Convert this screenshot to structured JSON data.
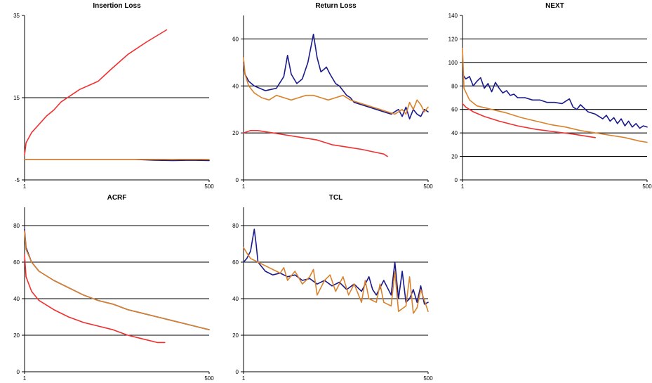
{
  "colors": {
    "blue": "#1a1a8c",
    "orange": "#d9822b",
    "red": "#f03030",
    "grid": "#000000"
  },
  "chart_data": [
    {
      "type": "line",
      "title": "Insertion Loss",
      "xlim": [
        1,
        500
      ],
      "xticks": [
        "1",
        "500"
      ],
      "ylim": [
        -5,
        35
      ],
      "yticks": [
        -5,
        15,
        35
      ],
      "ygrid": [
        15
      ],
      "series": [
        {
          "color": "blue",
          "x": [
            1,
            50,
            100,
            150,
            200,
            250,
            300,
            350,
            400,
            450,
            500
          ],
          "y": [
            0,
            0,
            0,
            0,
            0,
            0,
            0,
            -0.2,
            -0.3,
            -0.2,
            -0.3
          ]
        },
        {
          "color": "orange",
          "x": [
            1,
            100,
            200,
            300,
            400,
            500
          ],
          "y": [
            0,
            0,
            0,
            0,
            0,
            0
          ]
        },
        {
          "color": "red",
          "x": [
            1,
            5,
            20,
            40,
            60,
            80,
            100,
            150,
            200,
            236,
            280,
            330,
            385
          ],
          "y": [
            1,
            4,
            6.5,
            8.5,
            10.5,
            12,
            14,
            17,
            19,
            22,
            25.5,
            28.5,
            31.5
          ]
        }
      ]
    },
    {
      "type": "line",
      "title": "Return Loss",
      "xlim": [
        1,
        500
      ],
      "xticks": [
        "1",
        "500"
      ],
      "ylim": [
        0,
        70
      ],
      "yticks": [
        0,
        20,
        40,
        60
      ],
      "ygrid": [
        20,
        40,
        60
      ],
      "series": [
        {
          "color": "blue",
          "x": [
            1,
            5,
            15,
            30,
            60,
            90,
            110,
            120,
            130,
            145,
            160,
            175,
            190,
            200,
            210,
            218,
            225,
            235,
            250,
            260,
            270,
            280,
            290,
            300,
            320,
            340,
            360,
            380,
            400,
            420,
            430,
            440,
            450,
            460,
            470,
            480,
            490,
            500
          ],
          "y": [
            50,
            45,
            42,
            40,
            38,
            39,
            44,
            53,
            45,
            41,
            43,
            50,
            62,
            52,
            46,
            47,
            48,
            45,
            41,
            40,
            38,
            36,
            35,
            33,
            32,
            31,
            30,
            29,
            28,
            30,
            27,
            31,
            26,
            30,
            28,
            27,
            30,
            29
          ]
        },
        {
          "color": "orange",
          "x": [
            1,
            5,
            15,
            30,
            50,
            70,
            90,
            110,
            130,
            150,
            170,
            190,
            210,
            230,
            250,
            270,
            290,
            310,
            330,
            350,
            370,
            390,
            410,
            430,
            440,
            450,
            460,
            470,
            480,
            490,
            500
          ],
          "y": [
            52,
            45,
            40,
            37,
            35,
            34,
            36,
            35,
            34,
            35,
            36,
            36,
            35,
            34,
            35,
            36,
            34,
            33,
            32,
            31,
            30,
            29,
            28,
            30,
            28,
            33,
            30,
            34,
            32,
            29,
            31
          ]
        },
        {
          "color": "red",
          "x": [
            1,
            20,
            40,
            80,
            120,
            160,
            200,
            240,
            280,
            320,
            350,
            380,
            390
          ],
          "y": [
            20,
            21,
            21,
            20,
            19,
            18,
            17,
            15,
            14,
            13,
            12,
            11,
            10
          ]
        }
      ]
    },
    {
      "type": "line",
      "title": "NEXT",
      "xlim": [
        1,
        500
      ],
      "xticks": [
        "1",
        "500"
      ],
      "ylim": [
        0,
        140
      ],
      "yticks": [
        0,
        20,
        40,
        60,
        80,
        100,
        120,
        140
      ],
      "ygrid": [
        20,
        40,
        60,
        80,
        100,
        120
      ],
      "series": [
        {
          "color": "blue",
          "x": [
            1,
            10,
            20,
            30,
            40,
            50,
            60,
            70,
            80,
            90,
            100,
            110,
            120,
            130,
            140,
            150,
            170,
            190,
            210,
            230,
            250,
            270,
            290,
            300,
            310,
            320,
            340,
            360,
            380,
            390,
            400,
            410,
            420,
            430,
            440,
            450,
            460,
            470,
            480,
            490,
            500
          ],
          "y": [
            90,
            86,
            88,
            80,
            84,
            87,
            78,
            82,
            75,
            83,
            78,
            74,
            76,
            72,
            73,
            70,
            70,
            68,
            68,
            66,
            66,
            65,
            69,
            62,
            60,
            64,
            58,
            56,
            52,
            55,
            50,
            53,
            48,
            52,
            46,
            50,
            45,
            48,
            44,
            46,
            45
          ]
        },
        {
          "color": "orange",
          "x": [
            1,
            5,
            20,
            40,
            80,
            120,
            160,
            200,
            240,
            280,
            320,
            360,
            400,
            440,
            480,
            500
          ],
          "y": [
            112,
            78,
            68,
            63,
            60,
            57,
            53,
            50,
            47,
            45,
            42,
            40,
            38,
            36,
            33,
            32
          ]
        },
        {
          "color": "red",
          "x": [
            1,
            10,
            30,
            60,
            100,
            150,
            200,
            250,
            300,
            340,
            360
          ],
          "y": [
            65,
            62,
            58,
            54,
            50,
            46,
            43,
            41,
            39,
            37,
            36
          ]
        }
      ]
    },
    {
      "type": "line",
      "title": "ACRF",
      "xlim": [
        1,
        500
      ],
      "xticks": [
        "1",
        "500"
      ],
      "ylim": [
        0,
        90
      ],
      "yticks": [
        0,
        20,
        40,
        60,
        80
      ],
      "ygrid": [
        20,
        40,
        60,
        80
      ],
      "series": [
        {
          "color": "blue",
          "x": [
            1,
            5,
            20,
            40,
            80,
            120,
            160,
            200,
            240,
            280,
            320,
            360,
            400,
            440,
            480,
            500
          ],
          "y": [
            78,
            68,
            60,
            55,
            50,
            46,
            42,
            39,
            37,
            34,
            32,
            30,
            28,
            26,
            24,
            23
          ]
        },
        {
          "color": "orange",
          "x": [
            1,
            5,
            20,
            40,
            80,
            120,
            160,
            200,
            240,
            280,
            320,
            360,
            400,
            440,
            480,
            500
          ],
          "y": [
            77,
            67,
            60,
            55,
            50,
            46,
            42,
            39,
            37,
            34,
            32,
            30,
            28,
            26,
            24,
            23
          ]
        },
        {
          "color": "red",
          "x": [
            1,
            5,
            20,
            40,
            80,
            120,
            160,
            200,
            240,
            280,
            320,
            360,
            380
          ],
          "y": [
            64,
            52,
            44,
            39,
            34,
            30,
            27,
            25,
            23,
            20,
            18,
            16,
            16
          ]
        }
      ]
    },
    {
      "type": "line",
      "title": "TCL",
      "xlim": [
        1,
        500
      ],
      "xticks": [
        "1",
        "500"
      ],
      "ylim": [
        0,
        90
      ],
      "yticks": [
        0,
        20,
        40,
        60,
        80
      ],
      "ygrid": [
        20,
        40,
        60,
        80
      ],
      "series": [
        {
          "color": "blue",
          "x": [
            1,
            10,
            20,
            25,
            30,
            35,
            40,
            60,
            80,
            100,
            120,
            140,
            160,
            180,
            200,
            220,
            240,
            260,
            280,
            300,
            320,
            340,
            350,
            360,
            380,
            400,
            410,
            420,
            430,
            440,
            450,
            460,
            470,
            480,
            490,
            500
          ],
          "y": [
            60,
            62,
            66,
            72,
            78,
            70,
            60,
            55,
            53,
            54,
            52,
            53,
            50,
            51,
            48,
            50,
            47,
            49,
            45,
            48,
            44,
            52,
            45,
            42,
            50,
            42,
            60,
            40,
            55,
            38,
            40,
            45,
            38,
            47,
            37,
            38
          ]
        },
        {
          "color": "orange",
          "x": [
            1,
            10,
            20,
            40,
            60,
            80,
            100,
            110,
            120,
            140,
            160,
            180,
            190,
            200,
            220,
            235,
            250,
            270,
            285,
            300,
            320,
            330,
            340,
            360,
            370,
            380,
            400,
            410,
            420,
            440,
            450,
            460,
            470,
            480,
            500
          ],
          "y": [
            68,
            65,
            62,
            60,
            58,
            56,
            54,
            57,
            50,
            55,
            48,
            52,
            56,
            42,
            50,
            53,
            44,
            52,
            42,
            48,
            38,
            50,
            40,
            38,
            48,
            38,
            36,
            55,
            33,
            36,
            52,
            32,
            35,
            45,
            33
          ]
        }
      ]
    }
  ]
}
